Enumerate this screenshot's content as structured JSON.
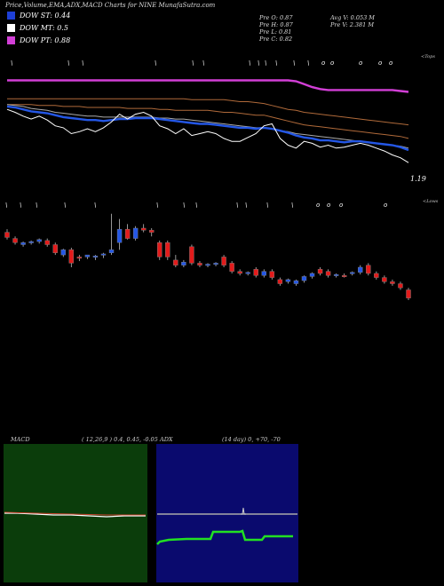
{
  "header": {
    "title": "Price,Volume,EMA,ADX,MACD Charts for NINE MunafaSutra.com",
    "legend": [
      {
        "label": "DOW ST: 0.44",
        "color": "#1e3fd6"
      },
      {
        "label": "DOW MT: 0.5",
        "color": "#ffffff"
      },
      {
        "label": "DOW PT: 0.88",
        "color": "#d23fd6"
      }
    ],
    "stats_left": [
      "Pre   O: 0.87",
      "Pre   H: 0.87",
      "Pre   L: 0.81",
      "Pre   C: 0.82"
    ],
    "stats_right": [
      "Avg V: 0.053 M",
      "Pre   V: 2.381 M"
    ]
  },
  "price_panel": {
    "top_label": "<Tops",
    "price_label": "1.19",
    "lower_label": "<Lows"
  },
  "macd_panel": {
    "label": "MACD",
    "params": "( 12,26,9 ) 0.4,  0.45,  -0.05"
  },
  "adx_panel": {
    "label": "ADX",
    "params": "(14  day) 0,  +70,  -70"
  },
  "colors": {
    "bull": "#2457e6",
    "bear": "#e21b1b",
    "pt_line": "#d23fd6",
    "macd_bg": "#0b3d0b",
    "adx_bg": "#0a0a6e",
    "adx_line": "#22e022"
  },
  "chart_data": [
    {
      "type": "candlestick",
      "ylim": [
        0.7,
        2.1
      ],
      "candles": [
        {
          "o": 1.72,
          "h": 1.75,
          "l": 1.65,
          "c": 1.67
        },
        {
          "o": 1.66,
          "h": 1.68,
          "l": 1.6,
          "c": 1.62
        },
        {
          "o": 1.6,
          "h": 1.63,
          "l": 1.58,
          "c": 1.62
        },
        {
          "o": 1.62,
          "h": 1.64,
          "l": 1.6,
          "c": 1.63
        },
        {
          "o": 1.63,
          "h": 1.66,
          "l": 1.61,
          "c": 1.65
        },
        {
          "o": 1.64,
          "h": 1.66,
          "l": 1.58,
          "c": 1.6
        },
        {
          "o": 1.6,
          "h": 1.62,
          "l": 1.5,
          "c": 1.52
        },
        {
          "o": 1.5,
          "h": 1.56,
          "l": 1.48,
          "c": 1.55
        },
        {
          "o": 1.55,
          "h": 1.57,
          "l": 1.38,
          "c": 1.42
        },
        {
          "o": 1.48,
          "h": 1.5,
          "l": 1.44,
          "c": 1.47
        },
        {
          "o": 1.48,
          "h": 1.5,
          "l": 1.46,
          "c": 1.5
        },
        {
          "o": 1.48,
          "h": 1.5,
          "l": 1.45,
          "c": 1.49
        },
        {
          "o": 1.5,
          "h": 1.52,
          "l": 1.47,
          "c": 1.51
        },
        {
          "o": 1.52,
          "h": 1.9,
          "l": 1.5,
          "c": 1.55
        },
        {
          "o": 1.62,
          "h": 1.85,
          "l": 1.55,
          "c": 1.75
        },
        {
          "o": 1.75,
          "h": 1.8,
          "l": 1.65,
          "c": 1.66
        },
        {
          "o": 1.66,
          "h": 1.78,
          "l": 1.64,
          "c": 1.76
        },
        {
          "o": 1.76,
          "h": 1.8,
          "l": 1.72,
          "c": 1.74
        },
        {
          "o": 1.74,
          "h": 1.76,
          "l": 1.68,
          "c": 1.72
        },
        {
          "o": 1.62,
          "h": 1.64,
          "l": 1.45,
          "c": 1.48
        },
        {
          "o": 1.62,
          "h": 1.64,
          "l": 1.45,
          "c": 1.48
        },
        {
          "o": 1.45,
          "h": 1.5,
          "l": 1.38,
          "c": 1.4
        },
        {
          "o": 1.4,
          "h": 1.45,
          "l": 1.38,
          "c": 1.43
        },
        {
          "o": 1.58,
          "h": 1.6,
          "l": 1.4,
          "c": 1.42
        },
        {
          "o": 1.42,
          "h": 1.44,
          "l": 1.38,
          "c": 1.4
        },
        {
          "o": 1.4,
          "h": 1.42,
          "l": 1.38,
          "c": 1.41
        },
        {
          "o": 1.41,
          "h": 1.43,
          "l": 1.39,
          "c": 1.42
        },
        {
          "o": 1.48,
          "h": 1.5,
          "l": 1.38,
          "c": 1.4
        },
        {
          "o": 1.42,
          "h": 1.44,
          "l": 1.32,
          "c": 1.34
        },
        {
          "o": 1.34,
          "h": 1.36,
          "l": 1.3,
          "c": 1.32
        },
        {
          "o": 1.32,
          "h": 1.34,
          "l": 1.3,
          "c": 1.33
        },
        {
          "o": 1.36,
          "h": 1.38,
          "l": 1.28,
          "c": 1.3
        },
        {
          "o": 1.3,
          "h": 1.36,
          "l": 1.28,
          "c": 1.34
        },
        {
          "o": 1.34,
          "h": 1.36,
          "l": 1.26,
          "c": 1.28
        },
        {
          "o": 1.26,
          "h": 1.28,
          "l": 1.2,
          "c": 1.22
        },
        {
          "o": 1.24,
          "h": 1.27,
          "l": 1.22,
          "c": 1.26
        },
        {
          "o": 1.22,
          "h": 1.26,
          "l": 1.2,
          "c": 1.25
        },
        {
          "o": 1.25,
          "h": 1.3,
          "l": 1.23,
          "c": 1.29
        },
        {
          "o": 1.29,
          "h": 1.33,
          "l": 1.27,
          "c": 1.32
        },
        {
          "o": 1.36,
          "h": 1.38,
          "l": 1.3,
          "c": 1.32
        },
        {
          "o": 1.34,
          "h": 1.36,
          "l": 1.28,
          "c": 1.3
        },
        {
          "o": 1.3,
          "h": 1.32,
          "l": 1.28,
          "c": 1.31
        },
        {
          "o": 1.3,
          "h": 1.32,
          "l": 1.28,
          "c": 1.29
        },
        {
          "o": 1.32,
          "h": 1.34,
          "l": 1.3,
          "c": 1.33
        },
        {
          "o": 1.33,
          "h": 1.4,
          "l": 1.31,
          "c": 1.38
        },
        {
          "o": 1.4,
          "h": 1.42,
          "l": 1.3,
          "c": 1.32
        },
        {
          "o": 1.32,
          "h": 1.34,
          "l": 1.26,
          "c": 1.28
        },
        {
          "o": 1.28,
          "h": 1.3,
          "l": 1.22,
          "c": 1.24
        },
        {
          "o": 1.24,
          "h": 1.26,
          "l": 1.2,
          "c": 1.22
        },
        {
          "o": 1.22,
          "h": 1.24,
          "l": 1.16,
          "c": 1.18
        },
        {
          "o": 1.16,
          "h": 1.18,
          "l": 1.06,
          "c": 1.08
        }
      ],
      "lines": [
        {
          "color": "#d23fd6",
          "values": [
            2.05,
            2.05,
            2.05,
            2.05,
            2.05,
            2.05,
            2.05,
            2.05,
            2.05,
            2.05,
            2.05,
            2.05,
            2.05,
            2.05,
            2.05,
            2.05,
            2.05,
            2.05,
            2.05,
            2.05,
            2.05,
            2.05,
            2.05,
            2.05,
            2.05,
            2.05,
            2.05,
            2.05,
            2.05,
            2.05,
            2.05,
            2.05,
            2.05,
            2.05,
            2.05,
            2.05,
            2.04,
            2.01,
            1.98,
            1.96,
            1.95,
            1.95,
            1.95,
            1.95,
            1.95,
            1.95,
            1.95,
            1.95,
            1.95,
            1.94,
            1.93
          ]
        },
        {
          "color": "#b06a3a",
          "values": [
            1.86,
            1.86,
            1.86,
            1.86,
            1.86,
            1.86,
            1.86,
            1.86,
            1.86,
            1.86,
            1.86,
            1.86,
            1.86,
            1.86,
            1.86,
            1.86,
            1.86,
            1.86,
            1.86,
            1.86,
            1.86,
            1.86,
            1.86,
            1.85,
            1.85,
            1.85,
            1.85,
            1.85,
            1.84,
            1.83,
            1.83,
            1.82,
            1.81,
            1.79,
            1.77,
            1.75,
            1.74,
            1.72,
            1.71,
            1.7,
            1.69,
            1.68,
            1.67,
            1.66,
            1.65,
            1.64,
            1.63,
            1.62,
            1.61,
            1.6,
            1.59
          ]
        },
        {
          "color": "#b06a3a",
          "values": [
            1.8,
            1.8,
            1.8,
            1.8,
            1.79,
            1.79,
            1.79,
            1.78,
            1.78,
            1.78,
            1.77,
            1.77,
            1.77,
            1.77,
            1.77,
            1.76,
            1.76,
            1.76,
            1.76,
            1.75,
            1.75,
            1.74,
            1.74,
            1.74,
            1.74,
            1.74,
            1.73,
            1.72,
            1.72,
            1.71,
            1.7,
            1.69,
            1.69,
            1.67,
            1.65,
            1.63,
            1.61,
            1.59,
            1.58,
            1.57,
            1.56,
            1.55,
            1.54,
            1.53,
            1.52,
            1.51,
            1.5,
            1.49,
            1.48,
            1.47,
            1.45
          ]
        },
        {
          "color": "#aaaaaa",
          "values": [
            1.8,
            1.79,
            1.78,
            1.76,
            1.75,
            1.74,
            1.72,
            1.71,
            1.7,
            1.69,
            1.68,
            1.68,
            1.67,
            1.67,
            1.67,
            1.67,
            1.67,
            1.67,
            1.67,
            1.66,
            1.66,
            1.65,
            1.65,
            1.64,
            1.63,
            1.62,
            1.61,
            1.6,
            1.59,
            1.58,
            1.57,
            1.56,
            1.56,
            1.55,
            1.53,
            1.52,
            1.5,
            1.49,
            1.48,
            1.47,
            1.46,
            1.45,
            1.44,
            1.43,
            1.42,
            1.41,
            1.4,
            1.39,
            1.38,
            1.37,
            1.35
          ]
        },
        {
          "color": "#2457e6",
          "values": [
            1.78,
            1.77,
            1.75,
            1.73,
            1.72,
            1.71,
            1.69,
            1.67,
            1.66,
            1.65,
            1.64,
            1.64,
            1.63,
            1.64,
            1.65,
            1.65,
            1.66,
            1.66,
            1.66,
            1.65,
            1.64,
            1.63,
            1.62,
            1.61,
            1.6,
            1.6,
            1.59,
            1.58,
            1.57,
            1.56,
            1.56,
            1.55,
            1.56,
            1.55,
            1.53,
            1.51,
            1.48,
            1.46,
            1.45,
            1.43,
            1.43,
            1.42,
            1.41,
            1.42,
            1.42,
            1.41,
            1.4,
            1.39,
            1.38,
            1.36,
            1.33
          ]
        },
        {
          "color": "#ffffff",
          "values": [
            1.75,
            1.72,
            1.68,
            1.65,
            1.68,
            1.64,
            1.58,
            1.56,
            1.5,
            1.52,
            1.55,
            1.52,
            1.56,
            1.62,
            1.7,
            1.65,
            1.7,
            1.72,
            1.68,
            1.58,
            1.55,
            1.5,
            1.55,
            1.48,
            1.5,
            1.52,
            1.5,
            1.45,
            1.42,
            1.42,
            1.46,
            1.5,
            1.58,
            1.6,
            1.45,
            1.38,
            1.35,
            1.42,
            1.4,
            1.36,
            1.38,
            1.35,
            1.36,
            1.38,
            1.4,
            1.38,
            1.35,
            1.32,
            1.28,
            1.25,
            1.2
          ]
        }
      ]
    },
    {
      "type": "line",
      "title": "MACD",
      "values": [
        0.4,
        0.45,
        -0.05
      ]
    },
    {
      "type": "line",
      "title": "ADX",
      "values": [
        0,
        70,
        -70
      ]
    }
  ]
}
